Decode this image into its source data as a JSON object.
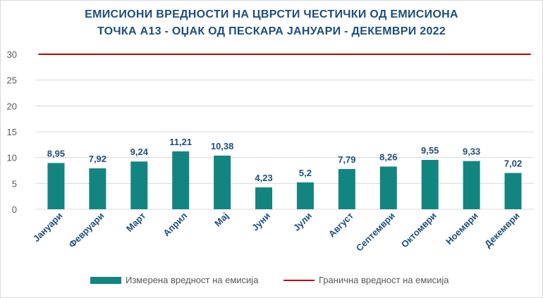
{
  "title_line1": "ЕМИСИОНИ ВРЕДНОСТИ НА ЦВРСТИ ЧЕСТИЧКИ ОД ЕМИСИОНА",
  "title_line2": "ТОЧКА А13 - ОЏАК ОД ПЕСКАРА ЈАНУАРИ - ДЕКЕМВРИ 2022",
  "colors": {
    "bar": "#138580",
    "limit": "#c00000",
    "title": "#1f4e79",
    "grid": "#d9d9d9",
    "axis_text": "#595959",
    "category_text": "#1f4e79",
    "label_text": "#1f4e79"
  },
  "chart_data": {
    "type": "bar",
    "title": "ЕМИСИОНИ ВРЕДНОСТИ НА ЦВРСТИ ЧЕСТИЧКИ ОД ЕМИСИОНА ТОЧКА А13 - ОЏАК ОД ПЕСКАРА ЈАНУАРИ - ДЕКЕМВРИ 2022",
    "categories": [
      "Јануари",
      "Февруари",
      "Март",
      "Април",
      "Мај",
      "Јуни",
      "Јули",
      "Август",
      "Септември",
      "Октомври",
      "Ноември",
      "Декември"
    ],
    "series": [
      {
        "name": "Измерена вредност на емисија",
        "type": "bar",
        "values": [
          8.95,
          7.92,
          9.24,
          11.21,
          10.38,
          4.23,
          5.2,
          7.79,
          8.26,
          9.55,
          9.33,
          7.02
        ],
        "labels": [
          "8,95",
          "7,92",
          "9,24",
          "11,21",
          "10,38",
          "4,23",
          "5,2",
          "7,79",
          "8,26",
          "9,55",
          "9,33",
          "7,02"
        ]
      },
      {
        "name": "Гранична вредност на емисија",
        "type": "line",
        "values": [
          30,
          30,
          30,
          30,
          30,
          30,
          30,
          30,
          30,
          30,
          30,
          30
        ]
      }
    ],
    "yticks": [
      "0",
      "5",
      "10",
      "15",
      "20",
      "25",
      "30"
    ],
    "ylim": [
      0,
      30
    ],
    "xlabel": "",
    "ylabel": "",
    "grid": true,
    "legend": "bottom"
  }
}
